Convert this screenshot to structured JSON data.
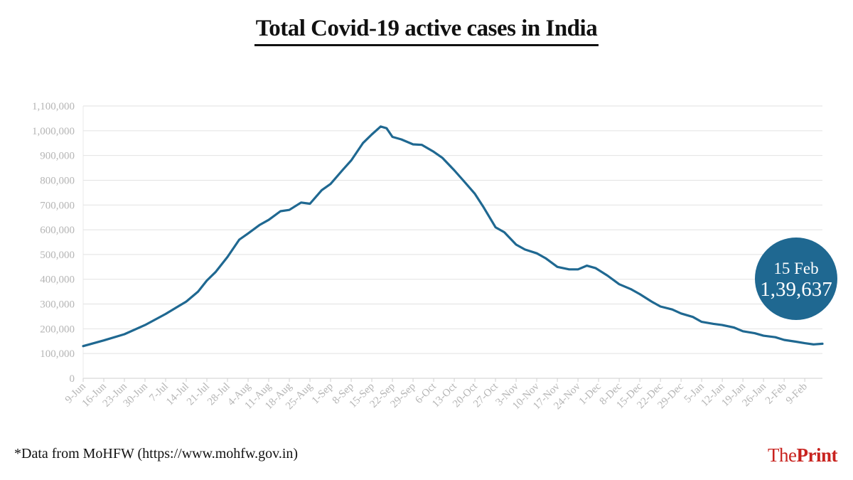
{
  "title": "Total Covid-19 active cases in India",
  "source": "*Data from MoHFW (https://www.mohfw.gov.in)",
  "brand": {
    "the": "The",
    "print": "Print"
  },
  "colors": {
    "line": "#1f6891",
    "grid": "#e2e2e2",
    "tick_text": "#b5b5b5",
    "callout": "#1f6891",
    "brand": "#c8231f"
  },
  "callout": {
    "date": "15 Feb",
    "value": "1,39,637"
  },
  "chart_data": {
    "type": "line",
    "title": "Total Covid-19 active cases in India",
    "xlabel": "",
    "ylabel": "",
    "ylim": [
      0,
      1100000
    ],
    "yticks": [
      0,
      100000,
      200000,
      300000,
      400000,
      500000,
      600000,
      700000,
      800000,
      900000,
      1000000,
      1100000
    ],
    "ytick_labels": [
      "0",
      "100,000",
      "200,000",
      "300,000",
      "400,000",
      "500,000",
      "600,000",
      "700,000",
      "800,000",
      "900,000",
      "1,000,000",
      "1,100,000"
    ],
    "x_start": "2020-06-09",
    "x_end": "2021-02-15",
    "xtick_labels": [
      "9-Jun",
      "16-Jun",
      "23-Jun",
      "30-Jun",
      "7-Jul",
      "14-Jul",
      "21-Jul",
      "28-Jul",
      "4-Aug",
      "11-Aug",
      "18-Aug",
      "25-Aug",
      "1-Sep",
      "8-Sep",
      "15-Sep",
      "22-Sep",
      "29-Sep",
      "6-Oct",
      "13-Oct",
      "20-Oct",
      "27-Oct",
      "3-Nov",
      "10-Nov",
      "17-Nov",
      "24-Nov",
      "1-Dec",
      "8-Dec",
      "15-Dec",
      "22-Dec",
      "29-Dec",
      "5-Jan",
      "12-Jan",
      "19-Jan",
      "26-Jan",
      "2-Feb",
      "9-Feb"
    ],
    "grid": true,
    "legend": "none",
    "series": [
      {
        "values": [
          [
            "2020-06-09",
            130000
          ],
          [
            "2020-06-16",
            153000
          ],
          [
            "2020-06-23",
            178000
          ],
          [
            "2020-06-30",
            215000
          ],
          [
            "2020-07-07",
            260000
          ],
          [
            "2020-07-14",
            310000
          ],
          [
            "2020-07-18",
            350000
          ],
          [
            "2020-07-21",
            395000
          ],
          [
            "2020-07-24",
            430000
          ],
          [
            "2020-07-28",
            490000
          ],
          [
            "2020-08-01",
            560000
          ],
          [
            "2020-08-04",
            585000
          ],
          [
            "2020-08-08",
            620000
          ],
          [
            "2020-08-11",
            640000
          ],
          [
            "2020-08-15",
            675000
          ],
          [
            "2020-08-18",
            680000
          ],
          [
            "2020-08-22",
            710000
          ],
          [
            "2020-08-25",
            705000
          ],
          [
            "2020-08-29",
            760000
          ],
          [
            "2020-09-01",
            785000
          ],
          [
            "2020-09-05",
            840000
          ],
          [
            "2020-09-08",
            880000
          ],
          [
            "2020-09-12",
            950000
          ],
          [
            "2020-09-15",
            985000
          ],
          [
            "2020-09-18",
            1017000
          ],
          [
            "2020-09-20",
            1010000
          ],
          [
            "2020-09-22",
            975000
          ],
          [
            "2020-09-25",
            965000
          ],
          [
            "2020-09-29",
            945000
          ],
          [
            "2020-10-02",
            943000
          ],
          [
            "2020-10-06",
            915000
          ],
          [
            "2020-10-09",
            890000
          ],
          [
            "2020-10-13",
            840000
          ],
          [
            "2020-10-16",
            800000
          ],
          [
            "2020-10-20",
            745000
          ],
          [
            "2020-10-23",
            690000
          ],
          [
            "2020-10-27",
            610000
          ],
          [
            "2020-10-30",
            590000
          ],
          [
            "2020-11-03",
            540000
          ],
          [
            "2020-11-06",
            520000
          ],
          [
            "2020-11-10",
            505000
          ],
          [
            "2020-11-13",
            485000
          ],
          [
            "2020-11-17",
            450000
          ],
          [
            "2020-11-21",
            440000
          ],
          [
            "2020-11-24",
            440000
          ],
          [
            "2020-11-27",
            455000
          ],
          [
            "2020-11-30",
            445000
          ],
          [
            "2020-12-04",
            415000
          ],
          [
            "2020-12-08",
            380000
          ],
          [
            "2020-12-12",
            360000
          ],
          [
            "2020-12-15",
            340000
          ],
          [
            "2020-12-19",
            310000
          ],
          [
            "2020-12-22",
            290000
          ],
          [
            "2020-12-26",
            278000
          ],
          [
            "2020-12-29",
            262000
          ],
          [
            "2021-01-02",
            248000
          ],
          [
            "2021-01-05",
            228000
          ],
          [
            "2021-01-09",
            220000
          ],
          [
            "2021-01-12",
            215000
          ],
          [
            "2021-01-16",
            205000
          ],
          [
            "2021-01-19",
            190000
          ],
          [
            "2021-01-23",
            182000
          ],
          [
            "2021-01-26",
            172000
          ],
          [
            "2021-01-30",
            166000
          ],
          [
            "2021-02-02",
            155000
          ],
          [
            "2021-02-06",
            148000
          ],
          [
            "2021-02-09",
            142000
          ],
          [
            "2021-02-12",
            137000
          ],
          [
            "2021-02-15",
            139637
          ]
        ]
      }
    ],
    "annotation": {
      "x": "2021-02-15",
      "y": 139637,
      "label_date": "15 Feb",
      "label_value": "1,39,637"
    }
  }
}
